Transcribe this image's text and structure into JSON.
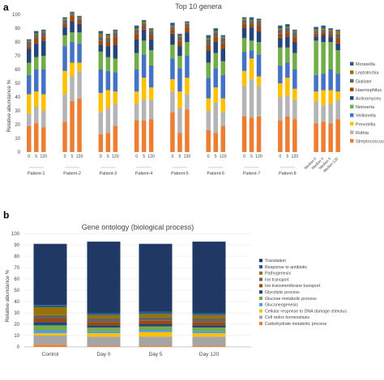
{
  "panel_labels": {
    "a": "a",
    "b": "b"
  },
  "chart_data": [
    {
      "type": "bar",
      "stacked": true,
      "title": "Top 10 genera",
      "ylabel": "Relative abundance %",
      "ylim": [
        0,
        100
      ],
      "yticks": [
        0,
        10,
        20,
        30,
        40,
        50,
        60,
        70,
        80,
        90,
        100
      ],
      "grid": false,
      "legend_position": "right",
      "groups": [
        {
          "label": "Patient-1",
          "bars": [
            "0",
            "5",
            "120"
          ]
        },
        {
          "label": "Patient-2",
          "bars": [
            "0",
            "5",
            "120"
          ]
        },
        {
          "label": "Patient-3",
          "bars": [
            "0",
            "5",
            "120"
          ]
        },
        {
          "label": "Patient-4",
          "bars": [
            "0",
            "5",
            "120"
          ]
        },
        {
          "label": "Patient-5",
          "bars": [
            "0",
            "5",
            "120"
          ]
        },
        {
          "label": "Patient-6",
          "bars": [
            "0",
            "5",
            "120"
          ]
        },
        {
          "label": "Patient-7",
          "bars": [
            "0",
            "5",
            "120"
          ]
        },
        {
          "label": "Patient-8",
          "bars": [
            "0",
            "5",
            "120"
          ]
        },
        {
          "label": "",
          "bars": [
            "Median 0",
            "Median 0",
            "Median 5",
            "Median 120"
          ]
        }
      ],
      "series": [
        {
          "name": "Streptococcus",
          "color": "#ed7d31",
          "values": [
            19,
            21,
            18,
            22,
            37,
            39,
            13,
            14,
            19,
            23,
            23,
            24,
            29,
            14,
            31,
            16,
            14,
            19,
            26,
            25,
            26,
            23,
            26,
            24,
            21,
            22,
            21,
            24
          ]
        },
        {
          "name": "Rothia",
          "color": "#b4b4b4",
          "values": [
            9,
            12,
            12,
            20,
            18,
            20,
            16,
            18,
            16,
            12,
            15,
            14,
            15,
            18,
            11,
            14,
            22,
            10,
            22,
            28,
            22,
            17,
            15,
            14,
            16,
            12,
            14,
            14
          ]
        },
        {
          "name": "Prevotella",
          "color": "#ffc000",
          "values": [
            14,
            11,
            12,
            17,
            10,
            6,
            14,
            13,
            9,
            9,
            16,
            9,
            9,
            12,
            12,
            9,
            11,
            10,
            11,
            15,
            7,
            10,
            13,
            8,
            7,
            11,
            10,
            6
          ]
        },
        {
          "name": "Veillonella",
          "color": "#4472c4",
          "values": [
            14,
            16,
            18,
            18,
            15,
            14,
            17,
            14,
            14,
            16,
            17,
            16,
            15,
            17,
            16,
            15,
            14,
            17,
            14,
            6,
            16,
            13,
            11,
            14,
            12,
            12,
            15,
            13
          ]
        },
        {
          "name": "Neisseria",
          "color": "#70ad47",
          "values": [
            9,
            9,
            10,
            8,
            7,
            8,
            13,
            10,
            10,
            12,
            10,
            11,
            10,
            9,
            10,
            11,
            11,
            10,
            10,
            7,
            9,
            13,
            11,
            12,
            25,
            23,
            20,
            17
          ]
        },
        {
          "name": "Actinomyces",
          "color": "#264478",
          "values": [
            10,
            10,
            11,
            6,
            8,
            6,
            5,
            8,
            10,
            10,
            8,
            8,
            8,
            7,
            7,
            9,
            8,
            9,
            7,
            10,
            8,
            7,
            8,
            8,
            3,
            5,
            4,
            5
          ]
        },
        {
          "name": "Haemophilus",
          "color": "#9e480e",
          "values": [
            2,
            4,
            3,
            2,
            4,
            2,
            3,
            3,
            6,
            4,
            3,
            3,
            3,
            4,
            4,
            4,
            4,
            4,
            3,
            2,
            4,
            3,
            3,
            4,
            2,
            2,
            2,
            4
          ]
        },
        {
          "name": "Dialister",
          "color": "#636363",
          "values": [
            3,
            2,
            3,
            3,
            1,
            2,
            3,
            3,
            3,
            3,
            2,
            3,
            2,
            3,
            2,
            4,
            3,
            4,
            3,
            2,
            3,
            3,
            3,
            3,
            2,
            2,
            2,
            3
          ]
        },
        {
          "name": "Leptotrichia",
          "color": "#997300",
          "values": [
            1,
            1,
            1,
            1,
            1,
            1,
            2,
            2,
            1,
            1,
            1,
            1,
            1,
            1,
            1,
            1,
            1,
            1,
            1,
            1,
            1,
            1,
            1,
            1,
            1,
            1,
            1,
            2
          ]
        },
        {
          "name": "Moraxella",
          "color": "#255e91",
          "values": [
            1,
            2,
            1,
            1,
            1,
            1,
            2,
            1,
            1,
            2,
            1,
            1,
            2,
            1,
            1,
            2,
            2,
            1,
            1,
            2,
            1,
            2,
            2,
            1,
            2,
            2,
            1,
            1
          ]
        }
      ]
    },
    {
      "type": "bar",
      "stacked": true,
      "title": "Gene ontology (biological process)",
      "ylabel": "Relative abundance %",
      "ylim": [
        0,
        100
      ],
      "yticks": [
        0,
        10,
        20,
        30,
        40,
        50,
        60,
        70,
        80,
        90,
        100
      ],
      "grid": true,
      "legend_position": "right",
      "categories": [
        "Control",
        "Day 0",
        "Day 5",
        "Day 120"
      ],
      "series": [
        {
          "name": "Carbohydrate metabolic process",
          "color": "#ed7d31",
          "values": [
            2,
            1,
            1,
            1
          ]
        },
        {
          "name": "Cell redox homeostasis",
          "color": "#a5a5a5",
          "values": [
            8,
            8,
            8,
            8
          ]
        },
        {
          "name": "Cellular response to DNA damage stimulus",
          "color": "#ffc000",
          "values": [
            2,
            3,
            4,
            3
          ]
        },
        {
          "name": "Gluconeogenesis",
          "color": "#5b9bd5",
          "values": [
            3,
            2,
            2,
            2
          ]
        },
        {
          "name": "Glucose metabolic process",
          "color": "#70ad47",
          "values": [
            4,
            3,
            3,
            3
          ]
        },
        {
          "name": "Glycolytic process",
          "color": "#264478",
          "values": [
            3,
            2,
            2,
            2
          ]
        },
        {
          "name": "Ion transmembrane transport",
          "color": "#9e480e",
          "values": [
            3,
            3,
            3,
            3
          ]
        },
        {
          "name": "Ion transport",
          "color": "#636363",
          "values": [
            3,
            3,
            3,
            3
          ]
        },
        {
          "name": "Pathogenesis",
          "color": "#997300",
          "values": [
            7,
            3,
            3,
            3
          ]
        },
        {
          "name": "Response to antibiotic",
          "color": "#255e91",
          "values": [
            2,
            2,
            2,
            2
          ]
        },
        {
          "name": "Translation",
          "color": "#1f3864",
          "values": [
            54,
            63,
            60,
            63
          ]
        }
      ]
    }
  ]
}
